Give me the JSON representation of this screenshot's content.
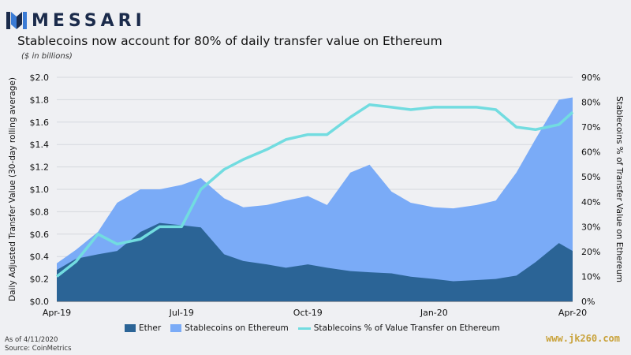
{
  "brand": {
    "name": "MESSARI"
  },
  "title": "Stablecoins now account for 80% of daily transfer value on Ethereum",
  "subtitle": "($ in billions)",
  "footer": {
    "as_of": "As of 4/11/2020",
    "source": "Source: CoinMetrics"
  },
  "watermark": "www.jk260.com",
  "colors": {
    "ether": "#2b6496",
    "stablecoins": "#7aabf7",
    "share_line": "#72dce0",
    "grid": "#d5d8de"
  },
  "chart_data": {
    "type": "area",
    "xlabel": "",
    "ylabel": "Daily Adjusted Transfer Value (30-day rolling average)",
    "y2label": "Stablecoins % of Transfer Value on Ethereum",
    "ylim": [
      0,
      2.0
    ],
    "y2lim": [
      0,
      0.9
    ],
    "yticks": [
      "$0.0",
      "$0.2",
      "$0.4",
      "$0.6",
      "$0.8",
      "$1.0",
      "$1.2",
      "$1.4",
      "$1.6",
      "$1.8",
      "$2.0"
    ],
    "y2ticks": [
      "0%",
      "10%",
      "20%",
      "30%",
      "40%",
      "50%",
      "60%",
      "70%",
      "80%",
      "90%"
    ],
    "xticks": [
      "Apr-19",
      "Jul-19",
      "Oct-19",
      "Jan-20",
      "Apr-20"
    ],
    "x": [
      "2019-04-01",
      "2019-04-15",
      "2019-05-01",
      "2019-05-15",
      "2019-06-01",
      "2019-06-15",
      "2019-07-01",
      "2019-07-15",
      "2019-08-01",
      "2019-08-15",
      "2019-09-01",
      "2019-09-15",
      "2019-10-01",
      "2019-10-15",
      "2019-11-01",
      "2019-11-15",
      "2019-12-01",
      "2019-12-15",
      "2020-01-01",
      "2020-01-15",
      "2020-02-01",
      "2020-02-15",
      "2020-03-01",
      "2020-03-15",
      "2020-04-01",
      "2020-04-11"
    ],
    "series": [
      {
        "name": "Ether",
        "kind": "area",
        "axis": "left",
        "values": [
          0.28,
          0.38,
          0.42,
          0.45,
          0.62,
          0.7,
          0.68,
          0.66,
          0.42,
          0.36,
          0.33,
          0.3,
          0.33,
          0.3,
          0.27,
          0.26,
          0.25,
          0.22,
          0.2,
          0.18,
          0.19,
          0.2,
          0.23,
          0.35,
          0.52,
          0.45
        ]
      },
      {
        "name": "Stablecoins on Ethereum",
        "kind": "area",
        "axis": "left",
        "values": [
          0.34,
          0.46,
          0.62,
          0.88,
          1.0,
          1.0,
          1.04,
          1.1,
          0.92,
          0.84,
          0.86,
          0.9,
          0.94,
          0.86,
          1.15,
          1.22,
          0.98,
          0.88,
          0.84,
          0.83,
          0.86,
          0.9,
          1.15,
          1.45,
          1.8,
          1.82
        ]
      },
      {
        "name": "Stablecoins % of Value Transfer on Ethereum",
        "kind": "line",
        "axis": "right",
        "values": [
          0.1,
          0.16,
          0.27,
          0.23,
          0.25,
          0.3,
          0.3,
          0.45,
          0.53,
          0.57,
          0.61,
          0.65,
          0.67,
          0.67,
          0.74,
          0.79,
          0.78,
          0.77,
          0.78,
          0.78,
          0.78,
          0.77,
          0.7,
          0.69,
          0.71,
          0.76
        ]
      }
    ],
    "legend_position": "bottom",
    "grid": true
  }
}
